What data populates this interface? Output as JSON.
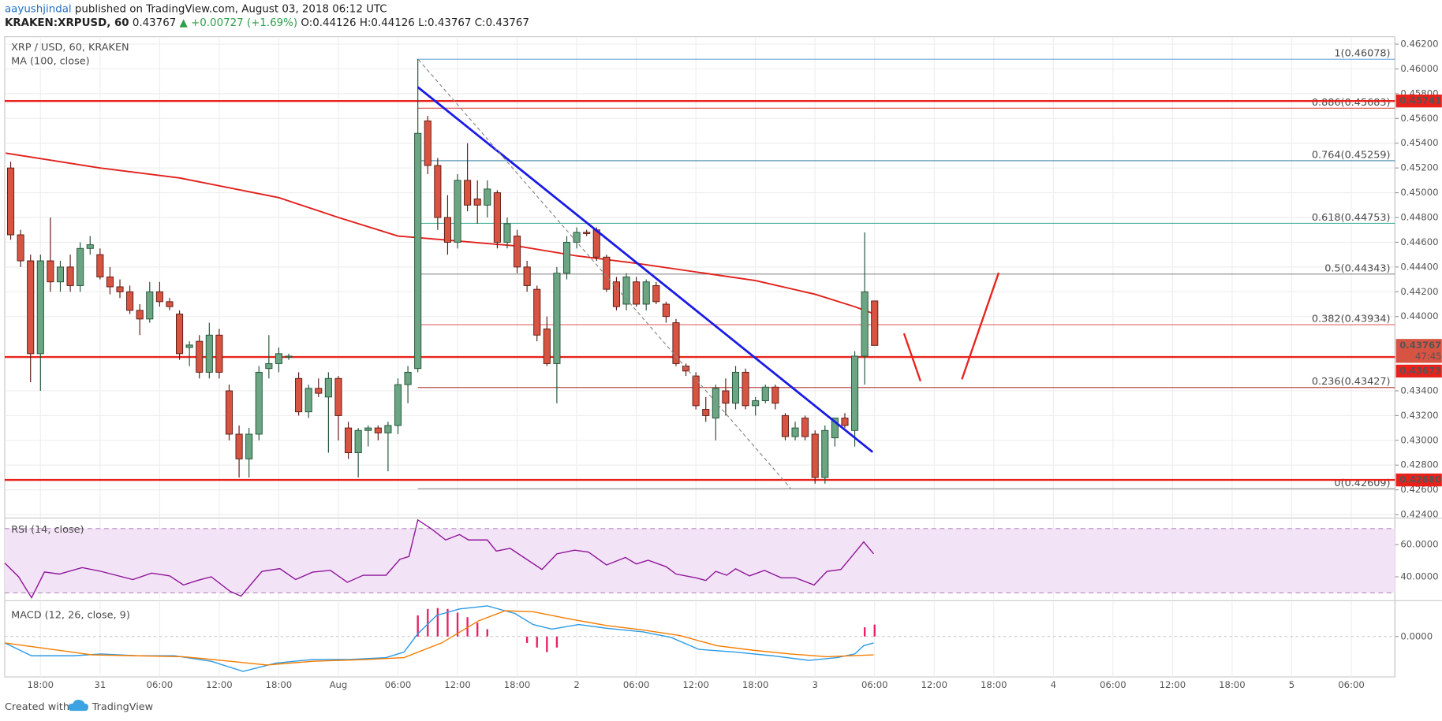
{
  "header": {
    "author": "aayushjindal",
    "published": "published on TradingView.com, August 03, 2018 06:12 UTC",
    "symbol": "KRAKEN:XRPUSD, 60",
    "price": "0.43767",
    "change": "▲ +0.00727 (+1.69%)",
    "ohlc": [
      "O:0.44126",
      "H:0.44126",
      "L:0.43767",
      "C:0.43767"
    ]
  },
  "chart_data": [
    {
      "type": "candlestick",
      "title": "XRP / USD, 60, KRAKEN",
      "indicator": "MA (100, close)",
      "up_color": "#6ba583",
      "up_border": "#225437",
      "down_color": "#d75442",
      "down_border": "#5b1a13",
      "xlim": [
        -9.6,
        130.4
      ],
      "xticks": [
        {
          "value": -6,
          "label": "18:00"
        },
        {
          "value": 0,
          "label": "31"
        },
        {
          "value": 6,
          "label": "06:00"
        },
        {
          "value": 12,
          "label": "12:00"
        },
        {
          "value": 18,
          "label": "18:00"
        },
        {
          "value": 24,
          "label": "Aug"
        },
        {
          "value": 30,
          "label": "06:00"
        },
        {
          "value": 36,
          "label": "12:00"
        },
        {
          "value": 42,
          "label": "18:00"
        },
        {
          "value": 48,
          "label": "2"
        },
        {
          "value": 54,
          "label": "06:00"
        },
        {
          "value": 60,
          "label": "12:00"
        },
        {
          "value": 66,
          "label": "18:00"
        },
        {
          "value": 72,
          "label": "3"
        },
        {
          "value": 78,
          "label": "06:00"
        },
        {
          "value": 84,
          "label": "12:00"
        },
        {
          "value": 90,
          "label": "18:00"
        },
        {
          "value": 96,
          "label": "4"
        },
        {
          "value": 102,
          "label": "06:00"
        },
        {
          "value": 108,
          "label": "12:00"
        },
        {
          "value": 114,
          "label": "18:00"
        },
        {
          "value": 120,
          "label": "5"
        },
        {
          "value": 126,
          "label": "06:00"
        }
      ],
      "ylim": [
        0.4238,
        0.4626
      ],
      "yticks": [
        {
          "value": 0.462,
          "label": "0.46200"
        },
        {
          "value": 0.46,
          "label": "0.46000"
        },
        {
          "value": 0.458,
          "label": "0.45800"
        },
        {
          "value": 0.456,
          "label": "0.45600"
        },
        {
          "value": 0.454,
          "label": "0.45400"
        },
        {
          "value": 0.452,
          "label": "0.45200"
        },
        {
          "value": 0.45,
          "label": "0.45000"
        },
        {
          "value": 0.448,
          "label": "0.44800"
        },
        {
          "value": 0.446,
          "label": "0.44600"
        },
        {
          "value": 0.444,
          "label": "0.44400"
        },
        {
          "value": 0.442,
          "label": "0.44200"
        },
        {
          "value": 0.44,
          "label": "0.44000"
        },
        {
          "value": 0.434,
          "label": "0.43400"
        },
        {
          "value": 0.432,
          "label": "0.43200"
        },
        {
          "value": 0.43,
          "label": "0.43000"
        },
        {
          "value": 0.428,
          "label": "0.42800"
        },
        {
          "value": 0.426,
          "label": "0.42600"
        },
        {
          "value": 0.424,
          "label": "0.42400"
        }
      ],
      "x": [
        -9,
        -8,
        -7,
        -6,
        -5,
        -4,
        -3,
        -2,
        -1,
        0,
        1,
        2,
        3,
        4,
        5,
        6,
        7,
        8,
        9,
        10,
        11,
        12,
        13,
        14,
        15,
        16,
        17,
        18,
        19,
        20,
        21,
        22,
        23,
        24,
        25,
        26,
        27,
        28,
        29,
        30,
        31,
        32,
        33,
        34,
        35,
        36,
        37,
        38,
        39,
        40,
        41,
        42,
        43,
        44,
        45,
        46,
        47,
        48,
        49,
        50,
        51,
        52,
        53,
        54,
        55,
        56,
        57,
        58,
        59,
        60,
        61,
        62,
        63,
        64,
        65,
        66,
        67,
        68,
        69,
        70,
        71,
        72,
        73,
        74,
        75,
        76,
        77,
        78
      ],
      "open": [
        0.452,
        0.4466,
        0.4445,
        0.437,
        0.4445,
        0.4428,
        0.444,
        0.4425,
        0.4455,
        0.445,
        0.4432,
        0.4424,
        0.442,
        0.4405,
        0.4398,
        0.442,
        0.4412,
        0.4402,
        0.4375,
        0.438,
        0.4355,
        0.4385,
        0.434,
        0.4305,
        0.4285,
        0.4305,
        0.4358,
        0.4362,
        0.4368,
        0.435,
        0.4323,
        0.4342,
        0.4335,
        0.435,
        0.431,
        0.429,
        0.4308,
        0.431,
        0.4306,
        0.4312,
        0.4345,
        0.4358,
        0.4558,
        0.4522,
        0.448,
        0.446,
        0.451,
        0.4495,
        0.449,
        0.45,
        0.446,
        0.4465,
        0.444,
        0.4422,
        0.439,
        0.4362,
        0.4435,
        0.446,
        0.4468,
        0.447,
        0.4448,
        0.4428,
        0.441,
        0.4428,
        0.441,
        0.4425,
        0.441,
        0.4395,
        0.436,
        0.4352,
        0.4325,
        0.4318,
        0.434,
        0.433,
        0.4355,
        0.4328,
        0.4332,
        0.4343,
        0.432,
        0.4303,
        0.4318,
        0.4305,
        0.427,
        0.4302,
        0.4318,
        0.4308,
        0.4368,
        0.44126
      ],
      "high": [
        0.4525,
        0.447,
        0.445,
        0.445,
        0.448,
        0.4445,
        0.445,
        0.446,
        0.4465,
        0.4455,
        0.444,
        0.443,
        0.4425,
        0.441,
        0.4428,
        0.4428,
        0.4415,
        0.4405,
        0.438,
        0.4385,
        0.4395,
        0.439,
        0.4345,
        0.4312,
        0.431,
        0.436,
        0.4385,
        0.4375,
        0.437,
        0.4355,
        0.4345,
        0.435,
        0.4355,
        0.4352,
        0.4315,
        0.431,
        0.4312,
        0.4312,
        0.4315,
        0.435,
        0.436,
        0.4608,
        0.4562,
        0.4528,
        0.4498,
        0.4515,
        0.454,
        0.451,
        0.451,
        0.4502,
        0.448,
        0.447,
        0.4445,
        0.4425,
        0.44,
        0.444,
        0.4465,
        0.4472,
        0.447,
        0.4472,
        0.445,
        0.4432,
        0.4435,
        0.4432,
        0.443,
        0.4428,
        0.4412,
        0.4398,
        0.4362,
        0.4355,
        0.4335,
        0.4345,
        0.435,
        0.436,
        0.4358,
        0.4335,
        0.4345,
        0.4345,
        0.4322,
        0.4315,
        0.432,
        0.4308,
        0.4312,
        0.4318,
        0.4322,
        0.4372,
        0.4468,
        0.44126
      ],
      "low": [
        0.4462,
        0.444,
        0.4347,
        0.434,
        0.442,
        0.442,
        0.442,
        0.442,
        0.445,
        0.443,
        0.4418,
        0.4415,
        0.4402,
        0.4385,
        0.4395,
        0.4408,
        0.4405,
        0.4365,
        0.436,
        0.435,
        0.435,
        0.435,
        0.43,
        0.427,
        0.427,
        0.43,
        0.435,
        0.4355,
        0.4365,
        0.432,
        0.4318,
        0.4335,
        0.429,
        0.43,
        0.4285,
        0.427,
        0.4295,
        0.43,
        0.4275,
        0.4305,
        0.433,
        0.4355,
        0.4515,
        0.447,
        0.445,
        0.4455,
        0.4485,
        0.4475,
        0.448,
        0.4455,
        0.4455,
        0.4435,
        0.442,
        0.438,
        0.436,
        0.433,
        0.443,
        0.4455,
        0.4465,
        0.4445,
        0.442,
        0.4405,
        0.4405,
        0.4408,
        0.4405,
        0.441,
        0.4395,
        0.436,
        0.4352,
        0.4325,
        0.4315,
        0.43,
        0.432,
        0.4325,
        0.4325,
        0.432,
        0.433,
        0.4325,
        0.43,
        0.43,
        0.43,
        0.4265,
        0.4265,
        0.4295,
        0.431,
        0.4295,
        0.4345,
        0.43767
      ],
      "close": [
        0.4466,
        0.4445,
        0.437,
        0.4445,
        0.4428,
        0.444,
        0.4425,
        0.4455,
        0.4458,
        0.4432,
        0.4424,
        0.442,
        0.4405,
        0.4398,
        0.442,
        0.4412,
        0.4408,
        0.437,
        0.4377,
        0.4355,
        0.4385,
        0.4355,
        0.4305,
        0.4285,
        0.4305,
        0.4355,
        0.4362,
        0.437,
        0.4368,
        0.4323,
        0.4342,
        0.4338,
        0.435,
        0.432,
        0.429,
        0.4308,
        0.431,
        0.4306,
        0.4312,
        0.4345,
        0.4355,
        0.4548,
        0.4522,
        0.448,
        0.446,
        0.451,
        0.449,
        0.449,
        0.4503,
        0.446,
        0.4475,
        0.444,
        0.4425,
        0.4385,
        0.4362,
        0.4435,
        0.446,
        0.4468,
        0.4467,
        0.4448,
        0.4422,
        0.4408,
        0.4432,
        0.441,
        0.4428,
        0.4412,
        0.44,
        0.4362,
        0.4356,
        0.4328,
        0.432,
        0.4342,
        0.433,
        0.4355,
        0.4328,
        0.4332,
        0.4343,
        0.433,
        0.4303,
        0.431,
        0.4303,
        0.427,
        0.4308,
        0.4318,
        0.4312,
        0.4368,
        0.442,
        0.43767
      ],
      "ma": {
        "color": "#e0201b",
        "x": [
          -9.5,
          0,
          8,
          18,
          24,
          30,
          36,
          42,
          48,
          54,
          60,
          66,
          72,
          76,
          78
        ],
        "values": [
          0.4532,
          0.452,
          0.4512,
          0.4496,
          0.448,
          0.4465,
          0.4461,
          0.4457,
          0.4449,
          0.4443,
          0.4436,
          0.4429,
          0.4418,
          0.4408,
          0.4402
        ]
      },
      "trendline": {
        "color": "#1a1ae6",
        "x": [
          32,
          77.8
        ],
        "values": [
          0.45853,
          0.42905
        ]
      },
      "fib": {
        "from": 32,
        "levels": [
          {
            "value": 0.46078,
            "label": "1(0.46078)",
            "color": "#6fa8dc"
          },
          {
            "value": 0.45683,
            "label": "0.886(0.45683)",
            "color": "#d9534f"
          },
          {
            "value": 0.45259,
            "label": "0.764(0.45259)",
            "color": "#3d85a6"
          },
          {
            "value": 0.44753,
            "label": "0.618(0.44753)",
            "color": "#4cb39b"
          },
          {
            "value": 0.44343,
            "label": "0.5(0.44343)",
            "color": "#8c8c8c"
          },
          {
            "value": 0.43934,
            "label": "0.382(0.43934)",
            "color": "#e06666"
          },
          {
            "value": 0.43427,
            "label": "0.236(0.43427)",
            "color": "#b94a48"
          },
          {
            "value": 0.42609,
            "label": "0(0.42609)",
            "color": "#999999"
          }
        ]
      },
      "hlines": {
        "color": "#e8221b",
        "levels": [
          {
            "value": 0.45741,
            "label": "0.45741"
          },
          {
            "value": 0.43673,
            "label": "0.43673"
          },
          {
            "value": 0.4268,
            "label": "0.42680"
          }
        ]
      },
      "last_price": {
        "value": 0.43767,
        "label": "0.43767",
        "countdown": "47:45",
        "color": "#d75442"
      }
    },
    {
      "type": "line",
      "title": "RSI (14, close)",
      "color": "#8e1599",
      "band": [
        30,
        70
      ],
      "band_color": "#f3e3f7",
      "ylim": [
        26.3,
        76
      ],
      "yticks": [
        {
          "value": 60,
          "label": "60.0000"
        },
        {
          "value": 40,
          "label": "40.0000"
        }
      ],
      "x": [
        -9.6,
        -8.2,
        -6.9,
        -5.6,
        -4.1,
        -1.8,
        0.1,
        3.3,
        5.2,
        7.0,
        8.4,
        9.8,
        11.2,
        13.1,
        14.2,
        16.3,
        18.1,
        19.7,
        21.4,
        23.2,
        24.9,
        26.5,
        28.8,
        30.2,
        31.1,
        32.0,
        33.4,
        34.8,
        36.2,
        37.1,
        39.0,
        39.9,
        41.3,
        43.1,
        44.5,
        46.0,
        47.8,
        49.2,
        51.0,
        52.9,
        54.0,
        55.2,
        57.0,
        58.0,
        60.0,
        61.0,
        62.0,
        63.1,
        64.0,
        65.4,
        66.9,
        68.6,
        70.0,
        71.9,
        73.2,
        74.6,
        75.6,
        76.9,
        77.9
      ],
      "values": [
        48.6,
        40,
        27,
        43,
        41.7,
        45.7,
        43.4,
        38.3,
        42.3,
        40.6,
        34.9,
        37.7,
        40,
        30.9,
        28,
        43.4,
        45.1,
        38.3,
        42.9,
        44,
        36.6,
        41,
        41,
        50.9,
        52.6,
        75.4,
        69.7,
        62.9,
        66.3,
        62.9,
        62.9,
        56,
        57.7,
        50.3,
        44.6,
        54.3,
        56.6,
        55.4,
        47.4,
        52,
        48,
        50.3,
        46.3,
        41.7,
        39.4,
        37.7,
        43.4,
        41,
        45,
        40.6,
        44,
        39.4,
        39.4,
        34.9,
        43.4,
        44.6,
        52,
        61.7,
        54.3
      ]
    },
    {
      "type": "macd",
      "title": "MACD (12, 26, close, 9)",
      "ylim": [
        -0.00264,
        0.00228
      ],
      "yticks": [
        {
          "value": 0,
          "label": "0.0000"
        }
      ],
      "macd": {
        "color": "#2b9ae6",
        "x": [
          -9.6,
          -6.9,
          -2.7,
          0.1,
          3.8,
          7.5,
          11.2,
          14.4,
          17.7,
          21.4,
          25.1,
          28.8,
          30.6,
          32,
          33.9,
          36.2,
          39,
          41.8,
          43.6,
          45.5,
          48.2,
          51,
          54.7,
          57.5,
          60.3,
          64,
          67.7,
          71.4,
          74.2,
          76,
          76.9,
          77.9
        ],
        "values": [
          -0.00042,
          -0.00126,
          -0.00126,
          -0.00114,
          -0.00126,
          -0.00126,
          -0.00162,
          -0.00228,
          -0.00174,
          -0.0015,
          -0.0015,
          -0.00138,
          -0.00102,
          0.00018,
          0.00138,
          0.0018,
          0.002,
          0.0015,
          0.00078,
          0.00048,
          0.00078,
          0.00054,
          0.0003,
          -6e-05,
          -0.00084,
          -0.00102,
          -0.00126,
          -0.00156,
          -0.00138,
          -0.00114,
          -0.0006,
          -0.00042
        ]
      },
      "signal": {
        "color": "#f57c00",
        "x": [
          -9.6,
          -5.5,
          -0.8,
          3.8,
          8.4,
          13.1,
          16.8,
          21.4,
          26.9,
          30.6,
          34.4,
          38.1,
          40.8,
          43.6,
          47.3,
          51,
          54.7,
          58.4,
          62.1,
          65.8,
          69.5,
          73.2,
          77.9
        ],
        "values": [
          -0.00042,
          -0.00078,
          -0.0012,
          -0.00126,
          -0.00132,
          -0.00162,
          -0.00186,
          -0.00162,
          -0.0015,
          -0.00138,
          -0.00042,
          0.00102,
          0.00168,
          0.00162,
          0.00114,
          0.00072,
          0.00042,
          6e-05,
          -0.0006,
          -0.0009,
          -0.00114,
          -0.00132,
          -0.0012
        ]
      },
      "histogram": {
        "color": "#e91e63",
        "x": [
          32,
          33,
          34,
          35,
          36,
          37,
          38,
          39,
          43,
          44,
          45,
          46,
          77,
          78
        ],
        "values": [
          0.00138,
          0.0018,
          0.00186,
          0.0018,
          0.00156,
          0.00126,
          0.0009,
          0.00048,
          -0.00042,
          -0.00072,
          -0.00102,
          -0.00072,
          0.0006,
          0.00078
        ]
      }
    }
  ],
  "footer": {
    "created": "Created with",
    "brand": "TradingView"
  }
}
